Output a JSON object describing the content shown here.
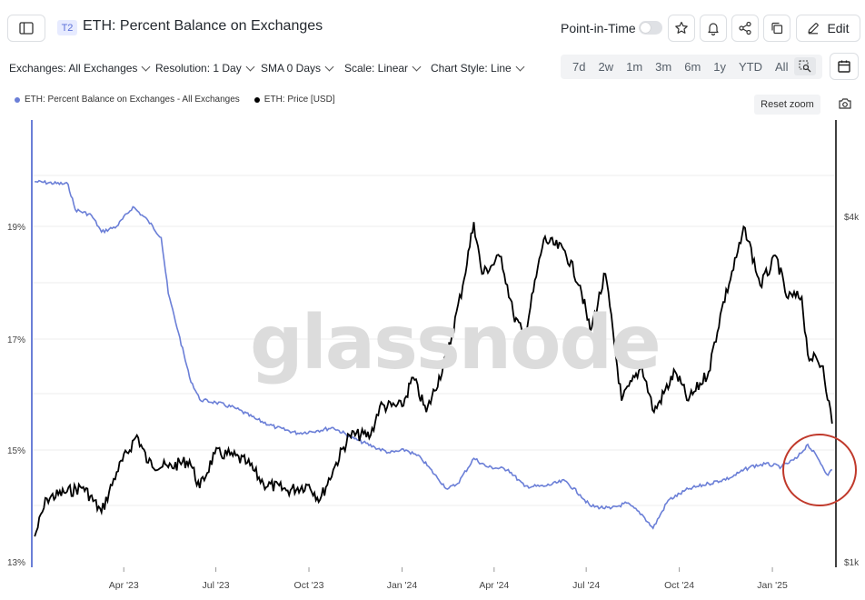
{
  "header": {
    "tier_badge": "T2",
    "title": "ETH: Percent Balance on Exchanges",
    "point_in_time_label": "Point-in-Time",
    "edit_label": "Edit"
  },
  "toolbar": {
    "exchanges": "Exchanges: All Exchanges",
    "resolution": "Resolution: 1 Day",
    "sma": "SMA 0 Days",
    "scale": "Scale: Linear",
    "chart_style": "Chart Style: Line",
    "ranges": [
      "7d",
      "2w",
      "1m",
      "3m",
      "6m",
      "1y",
      "YTD",
      "All"
    ]
  },
  "legend": {
    "series1": "ETH: Percent Balance on Exchanges - All Exchanges",
    "series2": "ETH: Price [USD]",
    "reset_zoom": "Reset zoom"
  },
  "watermark": "glassnode",
  "colors": {
    "balance": "#6b7fd7",
    "price": "#000000",
    "highlight": "#c0392b",
    "tier": "#5a6fd8"
  },
  "chart_data": {
    "type": "line",
    "x_ticks": [
      "Apr '23",
      "Jul '23",
      "Oct '23",
      "Jan '24",
      "Apr '24",
      "Jul '24",
      "Oct '24",
      "Jan '25"
    ],
    "y_left_ticks": [
      "19%",
      "17%",
      "15%",
      "13%"
    ],
    "y_right_ticks": [
      "$4k",
      "$1k"
    ],
    "series": [
      {
        "name": "ETH: Percent Balance on Exchanges - All Exchanges",
        "axis": "left",
        "values": [
          [
            "2023-01-03",
            19.8
          ],
          [
            "2023-02-05",
            19.75
          ],
          [
            "2023-02-12",
            19.3
          ],
          [
            "2023-02-28",
            19.2
          ],
          [
            "2023-03-10",
            18.9
          ],
          [
            "2023-03-25",
            19.0
          ],
          [
            "2023-04-10",
            19.35
          ],
          [
            "2023-04-25",
            19.1
          ],
          [
            "2023-05-08",
            18.8
          ],
          [
            "2023-05-15",
            17.8
          ],
          [
            "2023-05-25",
            17.1
          ],
          [
            "2023-06-05",
            16.3
          ],
          [
            "2023-06-15",
            15.9
          ],
          [
            "2023-07-01",
            15.85
          ],
          [
            "2023-07-20",
            15.75
          ],
          [
            "2023-08-10",
            15.55
          ],
          [
            "2023-08-30",
            15.4
          ],
          [
            "2023-09-20",
            15.3
          ],
          [
            "2023-10-10",
            15.35
          ],
          [
            "2023-10-25",
            15.4
          ],
          [
            "2023-11-15",
            15.2
          ],
          [
            "2023-12-05",
            15.05
          ],
          [
            "2023-12-20",
            14.95
          ],
          [
            "2024-01-05",
            15.0
          ],
          [
            "2024-01-20",
            14.85
          ],
          [
            "2024-02-05",
            14.5
          ],
          [
            "2024-02-15",
            14.3
          ],
          [
            "2024-02-25",
            14.4
          ],
          [
            "2024-03-12",
            14.85
          ],
          [
            "2024-03-25",
            14.7
          ],
          [
            "2024-04-15",
            14.65
          ],
          [
            "2024-05-01",
            14.35
          ],
          [
            "2024-05-20",
            14.35
          ],
          [
            "2024-06-10",
            14.45
          ],
          [
            "2024-06-25",
            14.2
          ],
          [
            "2024-07-05",
            14.0
          ],
          [
            "2024-07-25",
            13.95
          ],
          [
            "2024-08-10",
            14.05
          ],
          [
            "2024-08-25",
            13.85
          ],
          [
            "2024-09-05",
            13.6
          ],
          [
            "2024-09-20",
            14.1
          ],
          [
            "2024-10-10",
            14.3
          ],
          [
            "2024-10-30",
            14.4
          ],
          [
            "2024-11-20",
            14.5
          ],
          [
            "2024-12-10",
            14.7
          ],
          [
            "2024-12-25",
            14.75
          ],
          [
            "2025-01-10",
            14.7
          ],
          [
            "2025-01-25",
            14.85
          ],
          [
            "2025-02-05",
            15.1
          ],
          [
            "2025-02-15",
            14.85
          ],
          [
            "2025-02-25",
            14.55
          ],
          [
            "2025-03-01",
            14.65
          ]
        ]
      },
      {
        "name": "ETH: Price [USD]",
        "axis": "right",
        "values": [
          [
            "2023-01-03",
            1220
          ],
          [
            "2023-01-15",
            1550
          ],
          [
            "2023-02-01",
            1600
          ],
          [
            "2023-02-20",
            1650
          ],
          [
            "2023-03-10",
            1430
          ],
          [
            "2023-03-25",
            1780
          ],
          [
            "2023-04-14",
            2100
          ],
          [
            "2023-04-25",
            1860
          ],
          [
            "2023-05-15",
            1820
          ],
          [
            "2023-06-05",
            1880
          ],
          [
            "2023-06-15",
            1640
          ],
          [
            "2023-06-30",
            1940
          ],
          [
            "2023-07-15",
            1930
          ],
          [
            "2023-08-01",
            1860
          ],
          [
            "2023-08-17",
            1680
          ],
          [
            "2023-09-10",
            1620
          ],
          [
            "2023-10-01",
            1670
          ],
          [
            "2023-10-12",
            1540
          ],
          [
            "2023-10-25",
            1800
          ],
          [
            "2023-11-10",
            2100
          ],
          [
            "2023-12-01",
            2100
          ],
          [
            "2023-12-10",
            2350
          ],
          [
            "2024-01-01",
            2350
          ],
          [
            "2024-01-12",
            2600
          ],
          [
            "2024-01-25",
            2300
          ],
          [
            "2024-02-15",
            2800
          ],
          [
            "2024-03-01",
            3400
          ],
          [
            "2024-03-12",
            3950
          ],
          [
            "2024-03-20",
            3500
          ],
          [
            "2024-04-08",
            3650
          ],
          [
            "2024-04-20",
            3150
          ],
          [
            "2024-05-01",
            2950
          ],
          [
            "2024-05-20",
            3800
          ],
          [
            "2024-06-10",
            3700
          ],
          [
            "2024-06-25",
            3400
          ],
          [
            "2024-07-05",
            3000
          ],
          [
            "2024-07-20",
            3500
          ],
          [
            "2024-08-05",
            2400
          ],
          [
            "2024-08-25",
            2700
          ],
          [
            "2024-09-06",
            2300
          ],
          [
            "2024-09-27",
            2650
          ],
          [
            "2024-10-10",
            2400
          ],
          [
            "2024-10-30",
            2650
          ],
          [
            "2024-11-12",
            3200
          ],
          [
            "2024-12-05",
            3900
          ],
          [
            "2024-12-20",
            3400
          ],
          [
            "2025-01-05",
            3650
          ],
          [
            "2025-01-15",
            3300
          ],
          [
            "2025-01-30",
            3300
          ],
          [
            "2025-02-05",
            2800
          ],
          [
            "2025-02-20",
            2700
          ],
          [
            "2025-03-01",
            2200
          ]
        ]
      }
    ],
    "annotation": "circle highlighting recent uptick in exchange balance"
  }
}
